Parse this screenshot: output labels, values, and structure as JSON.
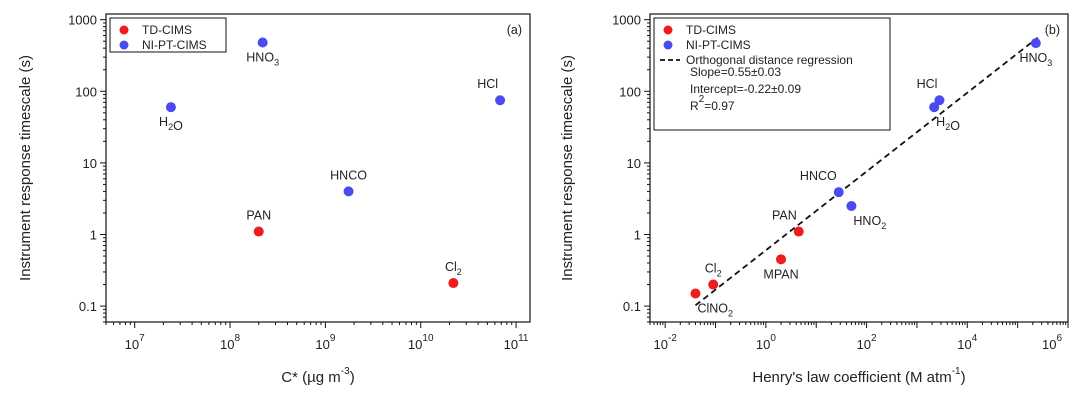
{
  "chart_data": [
    {
      "type": "scatter",
      "panel_label": "(a)",
      "xlabel": {
        "main": "C* (µg m",
        "sup": "-3",
        "tail": ")"
      },
      "ylabel": "Instrument response timescale (s)",
      "xscale": "log",
      "yscale": "log",
      "xlim": [
        5000000,
        140000000000
      ],
      "ylim": [
        0.06,
        1200
      ],
      "x_ticks": [
        {
          "value": 10000000,
          "base": "10",
          "exp": "7"
        },
        {
          "value": 100000000,
          "base": "10",
          "exp": "8"
        },
        {
          "value": 1000000000,
          "base": "10",
          "exp": "9"
        },
        {
          "value": 10000000000,
          "base": "10",
          "exp": "10"
        },
        {
          "value": 100000000000,
          "base": "10",
          "exp": "11"
        }
      ],
      "y_ticks": [
        {
          "value": 0.1,
          "label": "0.1"
        },
        {
          "value": 1,
          "label": "1"
        },
        {
          "value": 10,
          "label": "10"
        },
        {
          "value": 100,
          "label": "100"
        },
        {
          "value": 1000,
          "label": "1000"
        }
      ],
      "legend": {
        "position": "top-left",
        "entries": [
          {
            "label": "TD-CIMS",
            "color": "#ee1c1c"
          },
          {
            "label": "NI-PT-CIMS",
            "color": "#4a4af0"
          }
        ]
      },
      "series": [
        {
          "name": "TD-CIMS",
          "color": "#ee1c1c",
          "points": [
            {
              "x": 200000000,
              "y": 1.1,
              "label": "PAN",
              "label_pos": "above"
            },
            {
              "x": 22000000000,
              "y": 0.21,
              "label": "Cl2",
              "label_pos": "above"
            }
          ]
        },
        {
          "name": "NI-PT-CIMS",
          "color": "#4a4af0",
          "points": [
            {
              "x": 24000000,
              "y": 60,
              "label": "H2O",
              "label_pos": "below"
            },
            {
              "x": 220000000,
              "y": 480,
              "label": "HNO3",
              "label_pos": "below"
            },
            {
              "x": 1750000000,
              "y": 4,
              "label": "HNCO",
              "label_pos": "above"
            },
            {
              "x": 68000000000,
              "y": 75,
              "label": "HCl",
              "label_pos": "above-left"
            }
          ]
        }
      ]
    },
    {
      "type": "scatter",
      "panel_label": "(b)",
      "xlabel": {
        "main": "Henry's law coefficient (M atm",
        "sup": "-1",
        "tail": ")"
      },
      "ylabel": "Instrument response timescale (s)",
      "xscale": "log",
      "yscale": "log",
      "xlim": [
        0.005,
        1000000
      ],
      "ylim": [
        0.06,
        1200
      ],
      "x_ticks": [
        {
          "value": 0.01,
          "base": "10",
          "exp": "-2"
        },
        {
          "value": 1,
          "base": "10",
          "exp": "0"
        },
        {
          "value": 100,
          "base": "10",
          "exp": "2"
        },
        {
          "value": 10000,
          "base": "10",
          "exp": "4"
        },
        {
          "value": 1000000,
          "base": "10",
          "exp": "6"
        }
      ],
      "y_ticks": [
        {
          "value": 0.1,
          "label": "0.1"
        },
        {
          "value": 1,
          "label": "1"
        },
        {
          "value": 10,
          "label": "10"
        },
        {
          "value": 100,
          "label": "100"
        },
        {
          "value": 1000,
          "label": "1000"
        }
      ],
      "legend": {
        "position": "top-left",
        "entries": [
          {
            "label": "TD-CIMS",
            "color": "#ee1c1c",
            "kind": "marker"
          },
          {
            "label": "NI-PT-CIMS",
            "color": "#4a4af0",
            "kind": "marker"
          },
          {
            "label": "Orthogonal distance regression",
            "color": "#111111",
            "kind": "dashed"
          }
        ],
        "stats": [
          {
            "text": "Slope=0.55±0.03"
          },
          {
            "text": "Intercept=-0.22±0.09"
          },
          {
            "text": "R",
            "sup": "2",
            "tail": "=0.97"
          }
        ]
      },
      "regression": {
        "slope": 0.55,
        "intercept": -0.22,
        "x_range": [
          0.04,
          250000
        ],
        "style": "dashed"
      },
      "series": [
        {
          "name": "TD-CIMS",
          "color": "#ee1c1c",
          "points": [
            {
              "x": 0.04,
              "y": 0.15,
              "label": "ClNO2",
              "label_pos": "below-right"
            },
            {
              "x": 0.09,
              "y": 0.2,
              "label": "Cl2",
              "label_pos": "above"
            },
            {
              "x": 2,
              "y": 0.45,
              "label": "MPAN",
              "label_pos": "below"
            },
            {
              "x": 4.5,
              "y": 1.1,
              "label": "PAN",
              "label_pos": "above-left"
            }
          ]
        },
        {
          "name": "NI-PT-CIMS",
          "color": "#4a4af0",
          "points": [
            {
              "x": 28,
              "y": 3.9,
              "label": "HNCO",
              "label_pos": "above-left"
            },
            {
              "x": 50,
              "y": 2.5,
              "label": "HNO2",
              "label_pos": "below-right"
            },
            {
              "x": 2200,
              "y": 60,
              "label": "H2O",
              "label_pos": "below-right"
            },
            {
              "x": 2800,
              "y": 75,
              "label": "HCl",
              "label_pos": "above-left"
            },
            {
              "x": 230000,
              "y": 470,
              "label": "HNO3",
              "label_pos": "below"
            }
          ]
        }
      ]
    }
  ]
}
